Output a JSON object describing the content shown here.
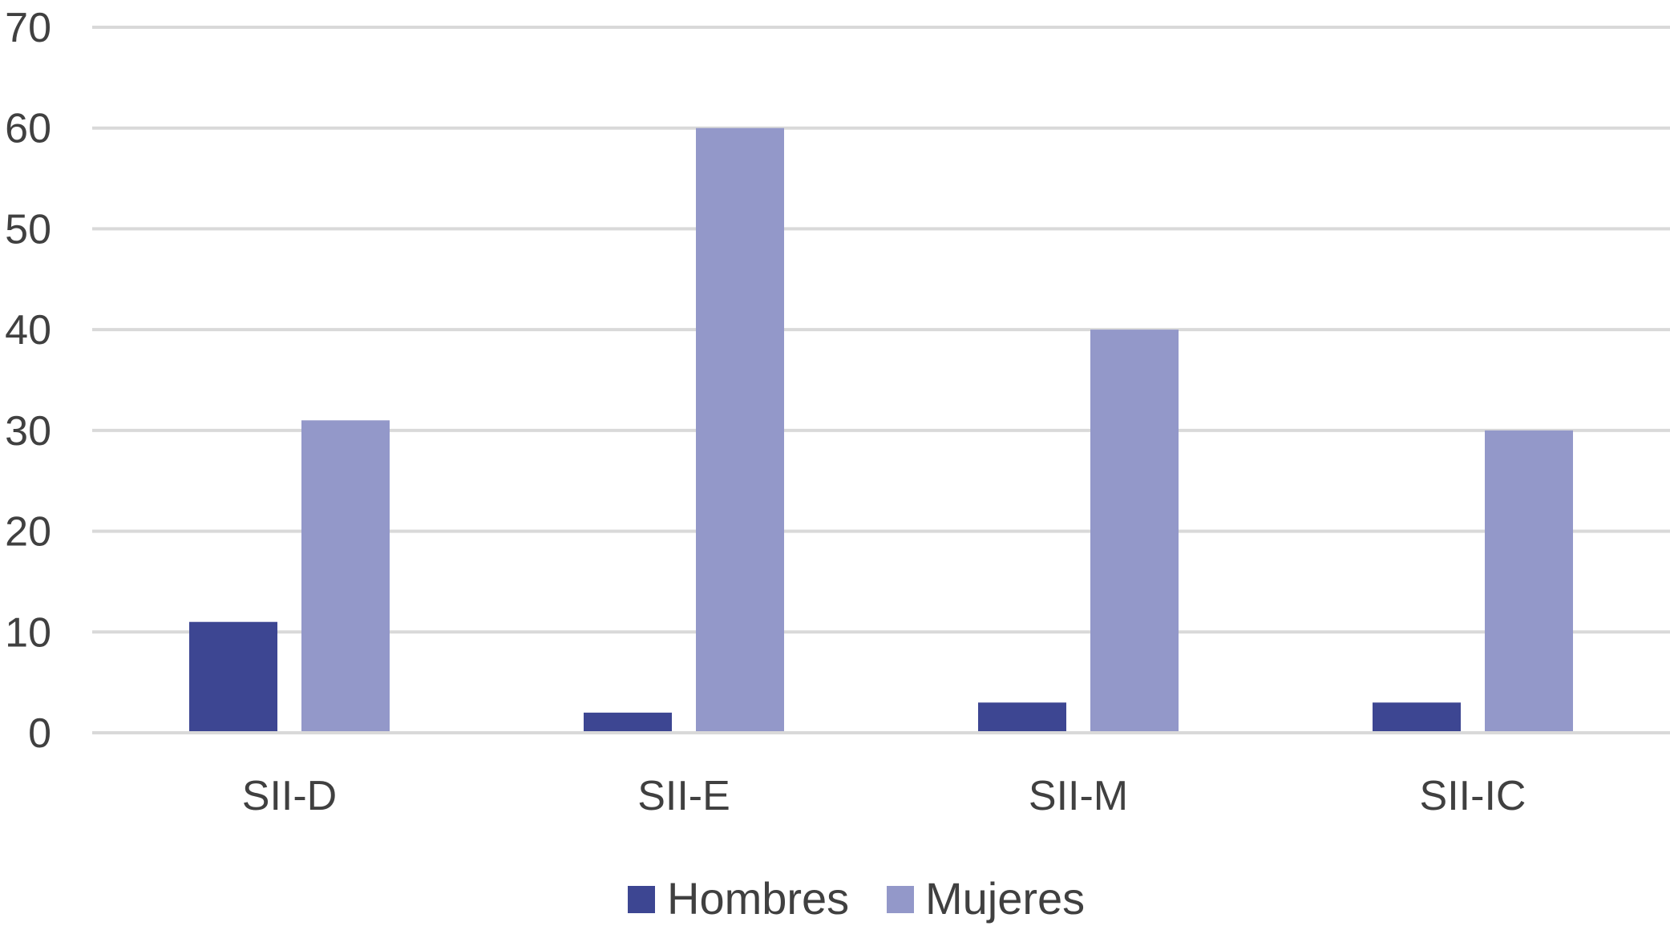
{
  "chart_data": {
    "type": "bar",
    "categories": [
      "SII-D",
      "SII-E",
      "SII-M",
      "SII-IC"
    ],
    "series": [
      {
        "name": "Hombres",
        "values": [
          11,
          2,
          3,
          3
        ],
        "color": "#3d4692"
      },
      {
        "name": "Mujeres",
        "values": [
          31,
          60,
          40,
          30
        ],
        "color": "#9398c9"
      }
    ],
    "ylim": [
      0,
      70
    ],
    "yticks": [
      0,
      10,
      20,
      30,
      40,
      50,
      60,
      70
    ],
    "grid": true,
    "legend": "bottom-center",
    "title": "",
    "xlabel": "",
    "ylabel": ""
  }
}
